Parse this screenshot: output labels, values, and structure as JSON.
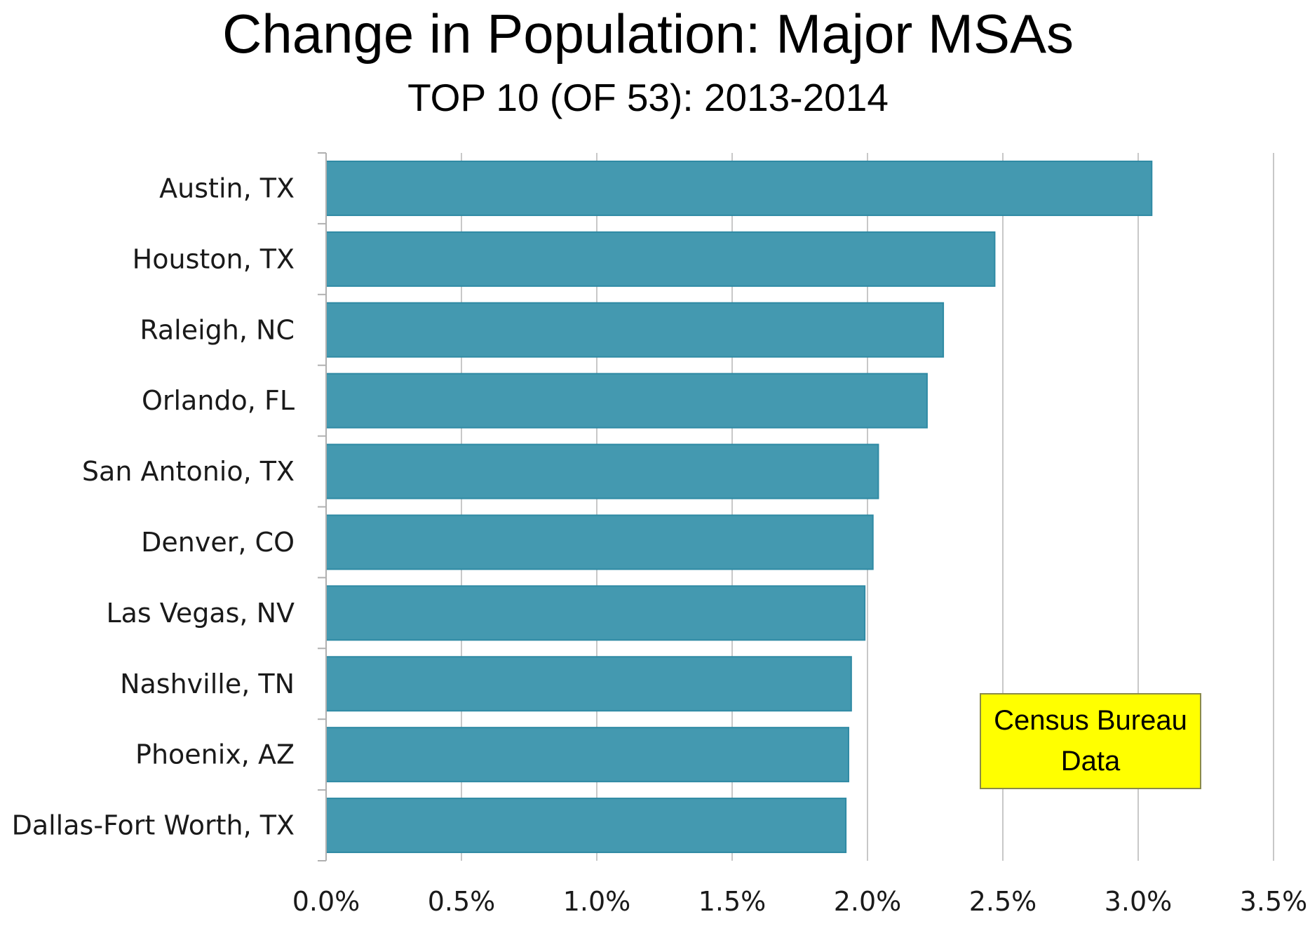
{
  "chart_data": {
    "type": "bar",
    "orientation": "horizontal",
    "title": "Change in Population: Major MSAs",
    "subtitle": "TOP 10 (OF 53): 2013-2014",
    "categories": [
      "Austin, TX",
      "Houston, TX",
      "Raleigh, NC",
      "Orlando, FL",
      "San Antonio, TX",
      "Denver, CO",
      "Las Vegas, NV",
      "Nashville, TN",
      "Phoenix, AZ",
      "Dallas-Fort Worth, TX"
    ],
    "values": [
      3.05,
      2.47,
      2.28,
      2.22,
      2.04,
      2.02,
      1.99,
      1.94,
      1.93,
      1.92
    ],
    "xlim": [
      0,
      3.5
    ],
    "xticks": [
      "0.0%",
      "0.5%",
      "1.0%",
      "1.5%",
      "2.0%",
      "2.5%",
      "3.0%",
      "3.5%"
    ],
    "xtick_values": [
      0,
      0.5,
      1.0,
      1.5,
      2.0,
      2.5,
      3.0,
      3.5
    ],
    "grid": "vertical",
    "bar_color": "#4499b0",
    "bar_edge_color": "#2f8aa4",
    "annotation": {
      "lines": [
        "Census Bureau",
        "Data"
      ],
      "fill": "#ffff00",
      "border": "#8a8a4a"
    }
  }
}
